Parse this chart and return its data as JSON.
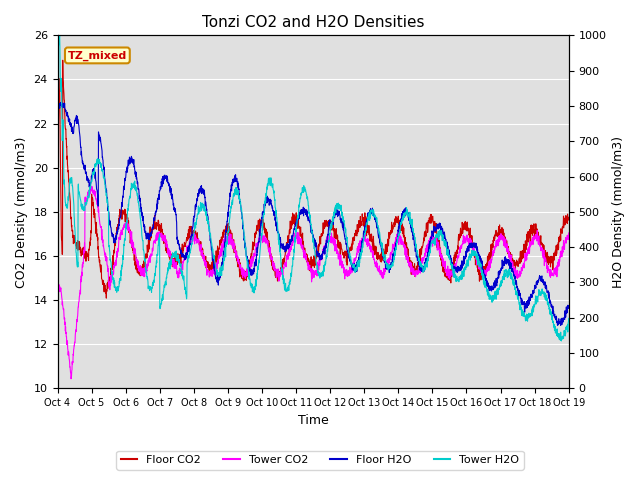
{
  "title": "Tonzi CO2 and H2O Densities",
  "xlabel": "Time",
  "ylabel_left": "CO2 Density (mmol/m3)",
  "ylabel_right": "H2O Density (mmol/m3)",
  "ylim_left": [
    10,
    26
  ],
  "ylim_right": [
    0,
    1000
  ],
  "yticks_left": [
    10,
    12,
    14,
    16,
    18,
    20,
    22,
    24,
    26
  ],
  "yticks_right": [
    0,
    100,
    200,
    300,
    400,
    500,
    600,
    700,
    800,
    900,
    1000
  ],
  "xtick_labels": [
    "Oct 4",
    "Oct 5",
    "Oct 6",
    "Oct 7",
    "Oct 8",
    "Oct 9",
    "Oct 10",
    "Oct 11",
    "Oct 12",
    "Oct 13",
    "Oct 14",
    "Oct 15",
    "Oct 16",
    "Oct 17",
    "Oct 18",
    "Oct 19"
  ],
  "annotation_text": "TZ_mixed",
  "colors": {
    "floor_co2": "#cc0000",
    "tower_co2": "#ff00ff",
    "floor_h2o": "#0000cc",
    "tower_h2o": "#00cccc"
  },
  "linewidth": 0.8,
  "background_color": "#e0e0e0",
  "legend_entries": [
    "Floor CO2",
    "Tower CO2",
    "Floor H2O",
    "Tower H2O"
  ]
}
